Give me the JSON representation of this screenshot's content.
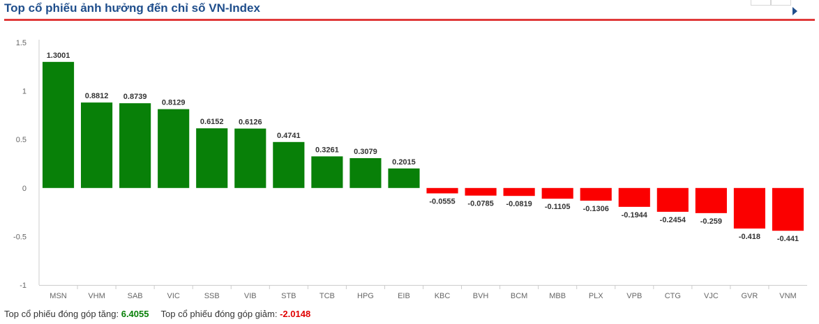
{
  "header": {
    "title": "Top cổ phiếu ảnh hưởng đến chỉ số VN-Index"
  },
  "colors": {
    "positive": "#088008",
    "negative": "#fb0000",
    "title": "#1f4e8c",
    "header_line": "#e03a3a",
    "grid": "#e6e6e6"
  },
  "chart_data": {
    "type": "bar",
    "title": "",
    "xlabel": "",
    "ylabel": "",
    "ylim": [
      -1,
      1.5
    ],
    "yticks": [
      "1.5",
      "1",
      "0.5",
      "0",
      "-0.5",
      "-1"
    ],
    "ytick_values": [
      1.5,
      1,
      0.5,
      0,
      -0.5,
      -1
    ],
    "grid": false,
    "categories": [
      "MSN",
      "VHM",
      "SAB",
      "VIC",
      "SSB",
      "VIB",
      "STB",
      "TCB",
      "HPG",
      "EIB",
      "KBC",
      "BVH",
      "BCM",
      "MBB",
      "PLX",
      "VPB",
      "CTG",
      "VJC",
      "GVR",
      "VNM"
    ],
    "values": [
      1.3001,
      0.8812,
      0.8739,
      0.8129,
      0.6152,
      0.6126,
      0.4741,
      0.3261,
      0.3079,
      0.2015,
      -0.0555,
      -0.0785,
      -0.0819,
      -0.1105,
      -0.1306,
      -0.1944,
      -0.2454,
      -0.259,
      -0.418,
      -0.441
    ],
    "data_labels": [
      "1.3001",
      "0.8812",
      "0.8739",
      "0.8129",
      "0.6152",
      "0.6126",
      "0.4741",
      "0.3261",
      "0.3079",
      "0.2015",
      "-0.0555",
      "-0.0785",
      "-0.0819",
      "-0.1105",
      "-0.1306",
      "-0.1944",
      "-0.2454",
      "-0.259",
      "-0.418",
      "-0.441"
    ]
  },
  "footer": {
    "increase_label": "Top cổ phiếu đóng góp tăng:",
    "increase_value": "6.4055",
    "decrease_label": "Top cổ phiếu đóng góp giảm:",
    "decrease_value": "-2.0148"
  }
}
